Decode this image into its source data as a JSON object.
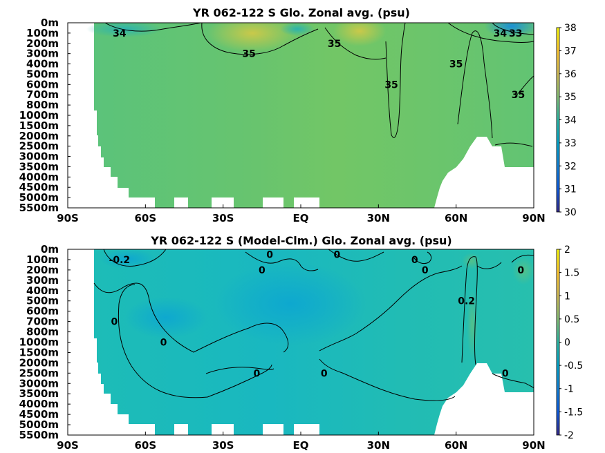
{
  "chart_data": [
    {
      "type": "heatmap",
      "title": "YR 062-122 S Glo. Zonal avg. (psu)",
      "xlabel": "",
      "ylabel": "",
      "x_ticks": [
        "90S",
        "60S",
        "30S",
        "EQ",
        "30N",
        "60N",
        "90N"
      ],
      "x_values": [
        -90,
        -60,
        -30,
        0,
        30,
        60,
        90
      ],
      "y_ticks": [
        "0m",
        "100m",
        "200m",
        "300m",
        "400m",
        "500m",
        "600m",
        "700m",
        "800m",
        "1000m",
        "1500m",
        "2000m",
        "2500m",
        "3000m",
        "3500m",
        "4000m",
        "4500m",
        "5000m",
        "5500m"
      ],
      "y_values": [
        0,
        100,
        200,
        300,
        400,
        500,
        600,
        700,
        800,
        1000,
        1500,
        2000,
        2500,
        3000,
        3500,
        4000,
        4500,
        5000,
        5500
      ],
      "colorbar": {
        "ticks": [
          "38",
          "37",
          "36",
          "35",
          "34",
          "33",
          "32",
          "31",
          "30"
        ],
        "range": [
          30,
          38
        ],
        "colormap": "parula"
      },
      "contour_labels": [
        {
          "text": "34",
          "lat": -70,
          "depth_m": 100
        },
        {
          "text": "35",
          "lat": -20,
          "depth_m": 300
        },
        {
          "text": "35",
          "lat": 13,
          "depth_m": 200
        },
        {
          "text": "35",
          "lat": 35,
          "depth_m": 600
        },
        {
          "text": "35",
          "lat": 60,
          "depth_m": 400
        },
        {
          "text": "34",
          "lat": 77,
          "depth_m": 100
        },
        {
          "text": "33",
          "lat": 83,
          "depth_m": 100
        },
        {
          "text": "35",
          "lat": 84,
          "depth_m": 700
        }
      ],
      "grid": false
    },
    {
      "type": "heatmap",
      "title": "YR 062-122 S (Model-Clm.) Glo. Zonal avg. (psu)",
      "xlabel": "",
      "ylabel": "",
      "x_ticks": [
        "90S",
        "60S",
        "30S",
        "EQ",
        "30N",
        "60N",
        "90N"
      ],
      "x_values": [
        -90,
        -60,
        -30,
        0,
        30,
        60,
        90
      ],
      "y_ticks": [
        "0m",
        "100m",
        "200m",
        "300m",
        "400m",
        "500m",
        "600m",
        "700m",
        "800m",
        "1000m",
        "1500m",
        "2000m",
        "2500m",
        "3000m",
        "3500m",
        "4000m",
        "4500m",
        "5000m",
        "5500m"
      ],
      "y_values": [
        0,
        100,
        200,
        300,
        400,
        500,
        600,
        700,
        800,
        1000,
        1500,
        2000,
        2500,
        3000,
        3500,
        4000,
        4500,
        5000,
        5500
      ],
      "colorbar": {
        "ticks": [
          "2",
          "1.5",
          "1",
          "0.5",
          "0",
          "-0.5",
          "-1",
          "-1.5",
          "-2"
        ],
        "range": [
          -2,
          2
        ],
        "colormap": "parula"
      },
      "contour_labels": [
        {
          "text": "-0.2",
          "lat": -70,
          "depth_m": 100
        },
        {
          "text": "0",
          "lat": -72,
          "depth_m": 700
        },
        {
          "text": "0",
          "lat": -53,
          "depth_m": 1000
        },
        {
          "text": "0",
          "lat": -12,
          "depth_m": 50
        },
        {
          "text": "0",
          "lat": -15,
          "depth_m": 200
        },
        {
          "text": "0",
          "lat": -17,
          "depth_m": 2500
        },
        {
          "text": "0",
          "lat": 14,
          "depth_m": 50
        },
        {
          "text": "0",
          "lat": 9,
          "depth_m": 2500
        },
        {
          "text": "0",
          "lat": 44,
          "depth_m": 100
        },
        {
          "text": "0",
          "lat": 48,
          "depth_m": 200
        },
        {
          "text": "0.2",
          "lat": 64,
          "depth_m": 500
        },
        {
          "text": "0",
          "lat": 85,
          "depth_m": 200
        },
        {
          "text": "0",
          "lat": 79,
          "depth_m": 2500
        }
      ],
      "grid": false
    }
  ]
}
